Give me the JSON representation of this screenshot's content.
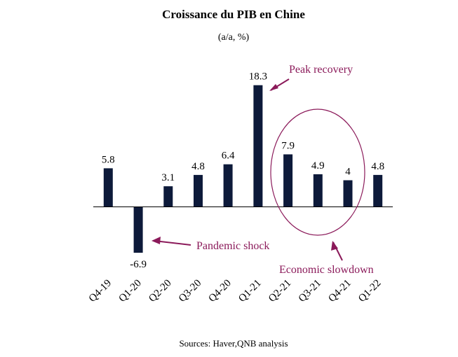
{
  "chart_data": {
    "type": "bar",
    "title": "Croissance du PIB en Chine",
    "subtitle": "(a/a, %)",
    "categories": [
      "Q4-19",
      "Q1-20",
      "Q2-20",
      "Q3-20",
      "Q4-20",
      "Q1-21",
      "Q2-21",
      "Q3-21",
      "Q4-21",
      "Q1-22"
    ],
    "values": [
      5.8,
      -6.9,
      3.1,
      4.8,
      6.4,
      18.3,
      7.9,
      4.9,
      4,
      4.8
    ],
    "value_labels": [
      "5.8",
      "-6.9",
      "3.1",
      "4.8",
      "6.4",
      "18.3",
      "7.9",
      "4.9",
      "4",
      "4.8"
    ],
    "ylim": [
      -7,
      19
    ],
    "grid": false,
    "bar_color": "#0d1a3a",
    "annotation_color": "#8b1a5a",
    "annotations": {
      "peak": "Peak recovery",
      "shock": "Pandemic shock",
      "slowdown": "Economic slowdown"
    },
    "source": "Sources: Haver,QNB analysis"
  }
}
